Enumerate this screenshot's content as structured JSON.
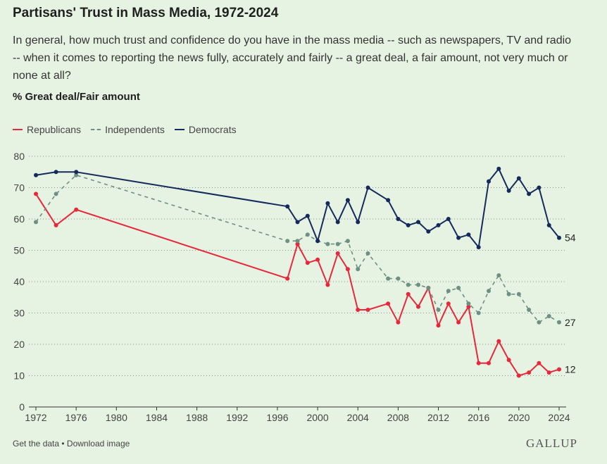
{
  "header": {
    "title": "Partisans' Trust in Mass Media, 1972-2024",
    "question": "In general, how much trust and confidence do you have in the mass media -- such as newspapers, TV and radio -- when it comes to reporting the news fully, accurately and fairly -- a great deal, a fair amount, not very much or none at all?",
    "measure": "% Great deal/Fair amount"
  },
  "footer": {
    "get_data": "Get the data",
    "separator": " • ",
    "download": "Download image",
    "logo": "GALLUP"
  },
  "colors": {
    "republicans": "#e8273b",
    "independents": "#6e8f83",
    "democrats": "#152a5c",
    "axis": "#333333",
    "grid": "#333333"
  },
  "chart_data": {
    "type": "line",
    "title": "Partisans' Trust in Mass Media, 1972-2024",
    "ylabel": "% Great deal/Fair amount",
    "xlabel": "",
    "xlim": [
      1972,
      2024
    ],
    "ylim": [
      0,
      80
    ],
    "x_ticks": [
      1972,
      1976,
      1980,
      1984,
      1988,
      1992,
      1996,
      2000,
      2004,
      2008,
      2012,
      2016,
      2020,
      2024
    ],
    "y_ticks": [
      0,
      10,
      20,
      30,
      40,
      50,
      60,
      70,
      80
    ],
    "legend_position": "top-left",
    "series": [
      {
        "key": "republicans",
        "name": "Republicans",
        "style": "solid",
        "end_label": "12",
        "points": [
          [
            1972,
            68
          ],
          [
            1974,
            58
          ],
          [
            1976,
            63
          ],
          [
            1997,
            41
          ],
          [
            1998,
            52
          ],
          [
            1999,
            46
          ],
          [
            2000,
            47
          ],
          [
            2001,
            39
          ],
          [
            2002,
            49
          ],
          [
            2003,
            44
          ],
          [
            2004,
            31
          ],
          [
            2005,
            31
          ],
          [
            2007,
            33
          ],
          [
            2008,
            27
          ],
          [
            2009,
            36
          ],
          [
            2010,
            32
          ],
          [
            2011,
            38
          ],
          [
            2012,
            26
          ],
          [
            2013,
            33
          ],
          [
            2014,
            27
          ],
          [
            2015,
            32
          ],
          [
            2016,
            14
          ],
          [
            2017,
            14
          ],
          [
            2018,
            21
          ],
          [
            2019,
            15
          ],
          [
            2020,
            10
          ],
          [
            2021,
            11
          ],
          [
            2022,
            14
          ],
          [
            2023,
            11
          ],
          [
            2024,
            12
          ]
        ]
      },
      {
        "key": "independents",
        "name": "Independents",
        "style": "dashed",
        "end_label": "27",
        "points": [
          [
            1972,
            59
          ],
          [
            1974,
            68
          ],
          [
            1976,
            74
          ],
          [
            1997,
            53
          ],
          [
            1998,
            53
          ],
          [
            1999,
            55
          ],
          [
            2000,
            53
          ],
          [
            2001,
            52
          ],
          [
            2002,
            52
          ],
          [
            2003,
            53
          ],
          [
            2004,
            44
          ],
          [
            2005,
            49
          ],
          [
            2007,
            41
          ],
          [
            2008,
            41
          ],
          [
            2009,
            39
          ],
          [
            2010,
            39
          ],
          [
            2011,
            38
          ],
          [
            2012,
            31
          ],
          [
            2013,
            37
          ],
          [
            2014,
            38
          ],
          [
            2015,
            33
          ],
          [
            2016,
            30
          ],
          [
            2017,
            37
          ],
          [
            2018,
            42
          ],
          [
            2019,
            36
          ],
          [
            2020,
            36
          ],
          [
            2021,
            31
          ],
          [
            2022,
            27
          ],
          [
            2023,
            29
          ],
          [
            2024,
            27
          ]
        ]
      },
      {
        "key": "democrats",
        "name": "Democrats",
        "style": "solid",
        "end_label": "54",
        "points": [
          [
            1972,
            74
          ],
          [
            1974,
            75
          ],
          [
            1976,
            75
          ],
          [
            1997,
            64
          ],
          [
            1998,
            59
          ],
          [
            1999,
            61
          ],
          [
            2000,
            53
          ],
          [
            2001,
            65
          ],
          [
            2002,
            59
          ],
          [
            2003,
            66
          ],
          [
            2004,
            59
          ],
          [
            2005,
            70
          ],
          [
            2007,
            66
          ],
          [
            2008,
            60
          ],
          [
            2009,
            58
          ],
          [
            2010,
            59
          ],
          [
            2011,
            56
          ],
          [
            2012,
            58
          ],
          [
            2013,
            60
          ],
          [
            2014,
            54
          ],
          [
            2015,
            55
          ],
          [
            2016,
            51
          ],
          [
            2017,
            72
          ],
          [
            2018,
            76
          ],
          [
            2019,
            69
          ],
          [
            2020,
            73
          ],
          [
            2021,
            68
          ],
          [
            2022,
            70
          ],
          [
            2023,
            58
          ],
          [
            2024,
            54
          ]
        ]
      }
    ]
  }
}
